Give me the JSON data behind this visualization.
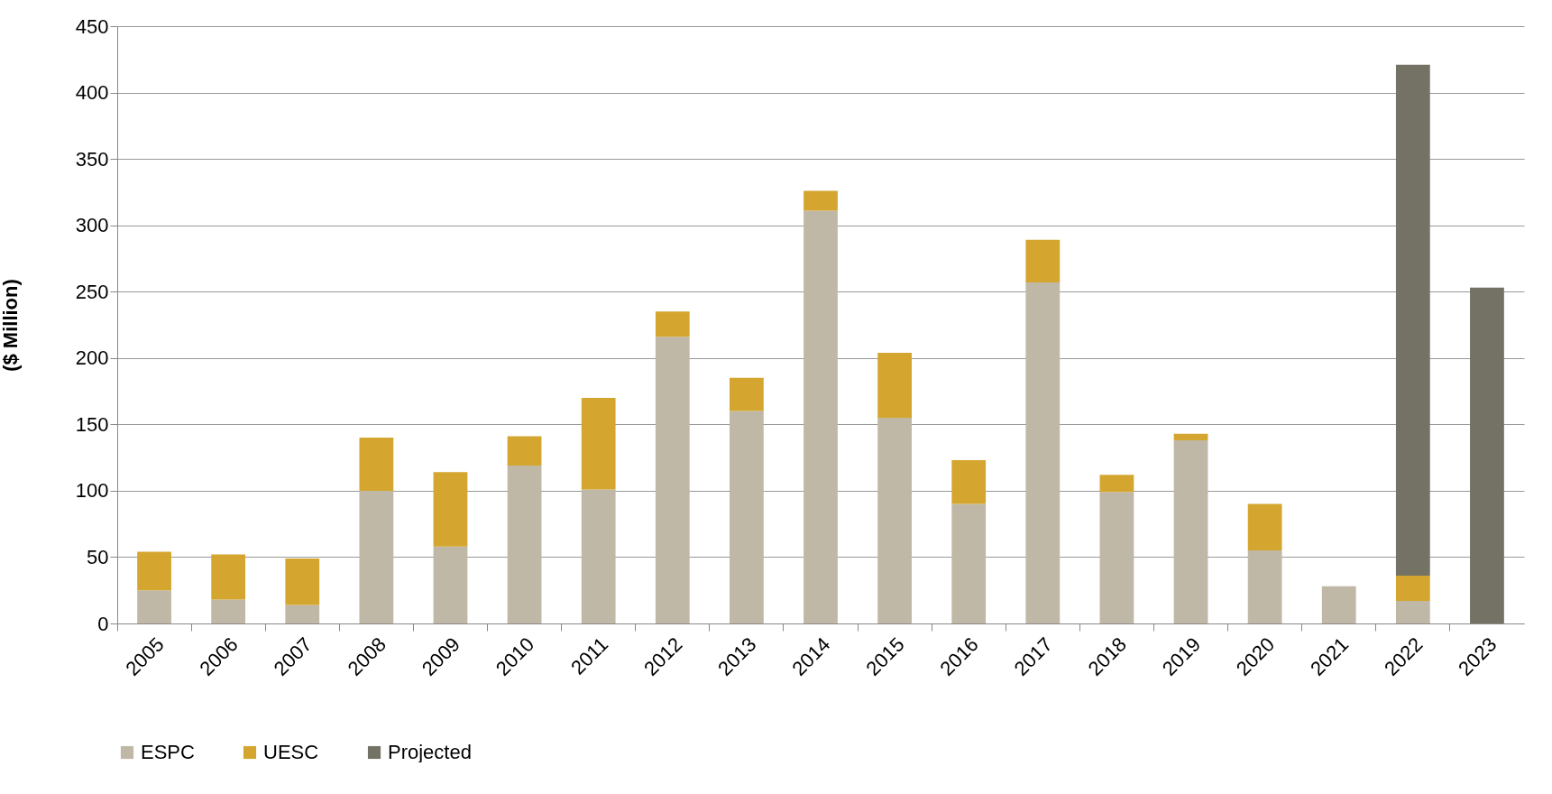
{
  "chart_data": {
    "type": "bar",
    "stacked": true,
    "ylabel": "($ Million)",
    "categories": [
      "2005",
      "2006",
      "2007",
      "2008",
      "2009",
      "2010",
      "2011",
      "2012",
      "2013",
      "2014",
      "2015",
      "2016",
      "2017",
      "2018",
      "2019",
      "2020",
      "2021",
      "2022",
      "2023"
    ],
    "series": [
      {
        "name": "ESPC",
        "color": "#bfb8a6",
        "values": [
          25,
          18,
          14,
          100,
          58,
          119,
          101,
          216,
          160,
          311,
          155,
          90,
          257,
          99,
          138,
          55,
          28,
          17,
          null
        ]
      },
      {
        "name": "UESC",
        "color": "#d4a62f",
        "values": [
          29,
          34,
          35,
          40,
          56,
          22,
          69,
          19,
          25,
          15,
          49,
          33,
          32,
          13,
          5,
          35,
          null,
          19,
          null
        ]
      },
      {
        "name": "Projected",
        "color": "#747264",
        "values": [
          null,
          null,
          null,
          null,
          null,
          null,
          null,
          null,
          null,
          null,
          null,
          null,
          null,
          null,
          null,
          null,
          null,
          385,
          253
        ]
      }
    ],
    "ylim": [
      0,
      450
    ],
    "yticks": [
      0,
      50,
      100,
      150,
      200,
      250,
      300,
      350,
      400,
      450
    ],
    "grid": "y",
    "legend": "bottom left"
  }
}
